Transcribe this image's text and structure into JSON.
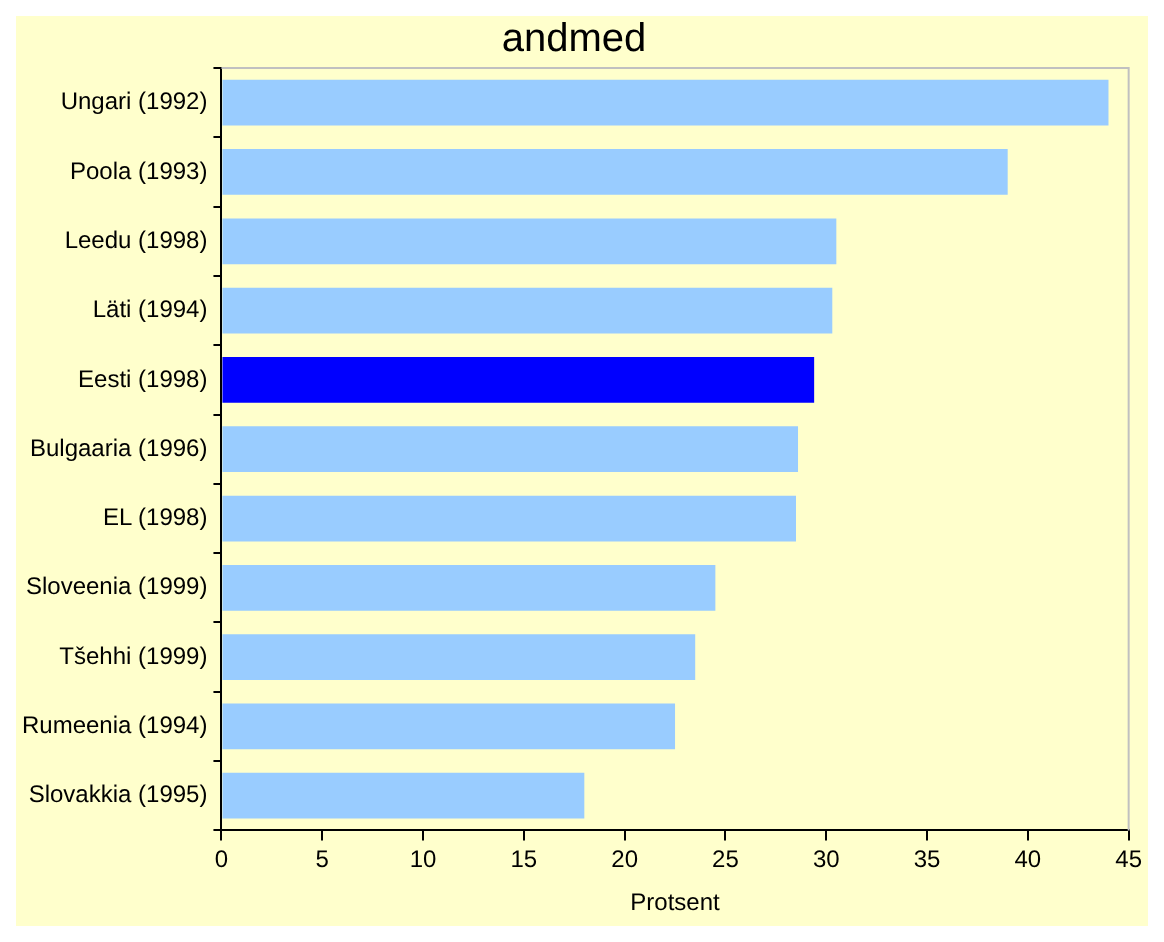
{
  "chart_data": {
    "type": "bar",
    "orientation": "horizontal",
    "title": "andmed",
    "xlabel": "Protsent",
    "categories": [
      "Ungari (1992)",
      "Poola (1993)",
      "Leedu (1998)",
      "Läti (1994)",
      "Eesti (1998)",
      "Bulgaaria (1996)",
      "EL (1998)",
      "Sloveenia (1999)",
      "Tšehhi (1999)",
      "Rumeenia (1994)",
      "Slovakkia (1995)"
    ],
    "values": [
      44.0,
      39.0,
      30.5,
      30.3,
      29.4,
      28.6,
      28.5,
      24.5,
      23.5,
      22.5,
      18.0
    ],
    "colors": [
      "#99ccff",
      "#99ccff",
      "#99ccff",
      "#99ccff",
      "#0000ff",
      "#99ccff",
      "#99ccff",
      "#99ccff",
      "#99ccff",
      "#99ccff",
      "#99ccff"
    ],
    "xlim": [
      0,
      45
    ],
    "xticks": [
      0,
      5,
      10,
      15,
      20,
      25,
      30,
      35,
      40,
      45
    ],
    "grid": false,
    "legend": false
  }
}
